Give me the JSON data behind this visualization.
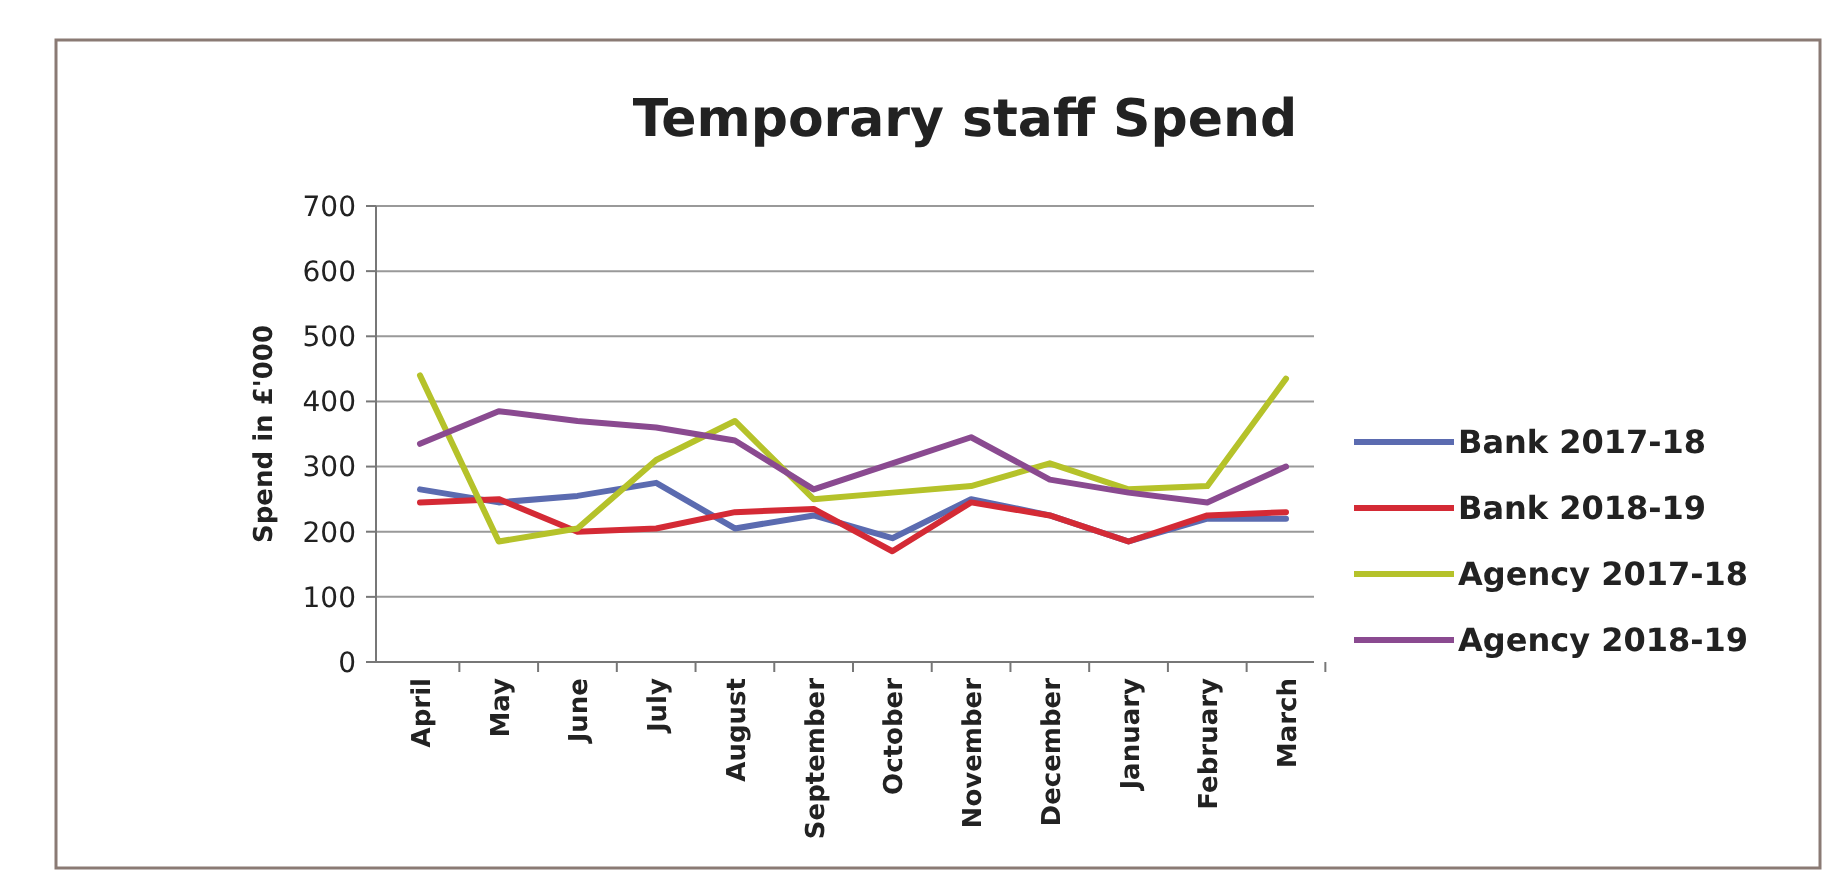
{
  "chart_data": {
    "type": "line",
    "title": "Temporary staff Spend",
    "ylabel": "Spend in £'000",
    "categories": [
      "April",
      "May",
      "June",
      "July",
      "August",
      "September",
      "October",
      "November",
      "December",
      "January",
      "February",
      "March"
    ],
    "series": [
      {
        "name": "Bank 2017-18",
        "color": "#5b6bb0",
        "values": [
          265,
          245,
          255,
          275,
          205,
          225,
          190,
          250,
          225,
          185,
          220,
          220
        ]
      },
      {
        "name": "Bank 2018-19",
        "color": "#d42a35",
        "values": [
          245,
          250,
          200,
          205,
          230,
          235,
          170,
          245,
          225,
          185,
          225,
          230
        ]
      },
      {
        "name": "Agency 2017-18",
        "color": "#b5c22a",
        "values": [
          440,
          185,
          205,
          310,
          370,
          250,
          260,
          270,
          305,
          265,
          270,
          435
        ]
      },
      {
        "name": "Agency 2018-19",
        "color": "#8a4a90",
        "values": [
          335,
          385,
          370,
          360,
          340,
          265,
          305,
          345,
          280,
          260,
          245,
          300
        ]
      }
    ],
    "ylim": [
      0,
      700
    ],
    "yticks": [
      0,
      100,
      200,
      300,
      400,
      500,
      600,
      700
    ],
    "grid": "y",
    "legend": "right",
    "marker": "none",
    "line_style": "solid"
  }
}
